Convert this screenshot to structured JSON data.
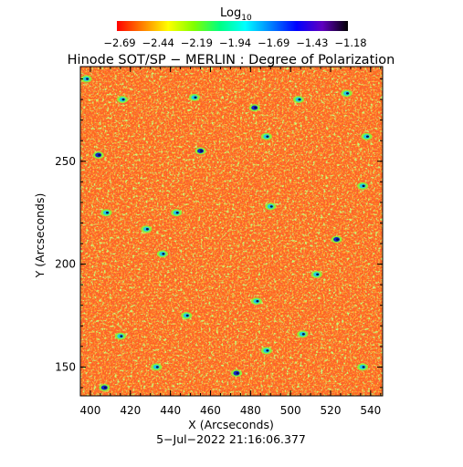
{
  "chart_data": {
    "type": "heatmap",
    "title": "Hinode SOT/SP − MERLIN : Degree of Polarization",
    "xlabel": "X (Arcseconds)",
    "ylabel": "Y (Arcseconds)",
    "timestamp": "5−Jul−2022 21:16:06.377",
    "xlim": [
      395,
      546
    ],
    "ylim": [
      136,
      296
    ],
    "xticks": [
      400,
      420,
      440,
      460,
      480,
      500,
      520,
      540
    ],
    "yticks": [
      150,
      200,
      250
    ],
    "colorbar": {
      "label_main": "Log",
      "label_sub": "10",
      "range": [
        -2.69,
        -1.18
      ],
      "ticks": [
        "−2.69",
        "−2.44",
        "−2.19",
        "−1.94",
        "−1.69",
        "−1.43",
        "−1.18"
      ],
      "colors": [
        "#ff0000",
        "#ff8000",
        "#ffff00",
        "#80ff00",
        "#00ff80",
        "#00ffff",
        "#0080ff",
        "#0000ff",
        "#6000c0",
        "#000000"
      ]
    },
    "map_base_colors": [
      "#ff5a14",
      "#ff8a1e",
      "#ff3c10",
      "#f0c020"
    ],
    "features": [
      {
        "x": 452,
        "y": 281,
        "level": -1.5
      },
      {
        "x": 416,
        "y": 280,
        "level": -1.5
      },
      {
        "x": 482,
        "y": 276,
        "level": -1.4
      },
      {
        "x": 504,
        "y": 280,
        "level": -1.6
      },
      {
        "x": 528,
        "y": 283,
        "level": -1.5
      },
      {
        "x": 398,
        "y": 290,
        "level": -1.6
      },
      {
        "x": 404,
        "y": 253,
        "level": -1.4
      },
      {
        "x": 455,
        "y": 255,
        "level": -1.4
      },
      {
        "x": 488,
        "y": 262,
        "level": -1.6
      },
      {
        "x": 538,
        "y": 262,
        "level": -1.6
      },
      {
        "x": 408,
        "y": 225,
        "level": -1.5
      },
      {
        "x": 443,
        "y": 225,
        "level": -1.5
      },
      {
        "x": 490,
        "y": 228,
        "level": -1.6
      },
      {
        "x": 536,
        "y": 238,
        "level": -1.6
      },
      {
        "x": 428,
        "y": 217,
        "level": -1.7
      },
      {
        "x": 436,
        "y": 205,
        "level": -1.5
      },
      {
        "x": 523,
        "y": 212,
        "level": -1.4
      },
      {
        "x": 513,
        "y": 195,
        "level": -1.6
      },
      {
        "x": 483,
        "y": 182,
        "level": -1.6
      },
      {
        "x": 506,
        "y": 166,
        "level": -1.6
      },
      {
        "x": 488,
        "y": 158,
        "level": -1.5
      },
      {
        "x": 473,
        "y": 147,
        "level": -1.4
      },
      {
        "x": 407,
        "y": 140,
        "level": -1.4
      },
      {
        "x": 433,
        "y": 150,
        "level": -1.6
      },
      {
        "x": 536,
        "y": 150,
        "level": -1.6
      },
      {
        "x": 448,
        "y": 175,
        "level": -1.7
      },
      {
        "x": 415,
        "y": 165,
        "level": -1.7
      }
    ]
  }
}
